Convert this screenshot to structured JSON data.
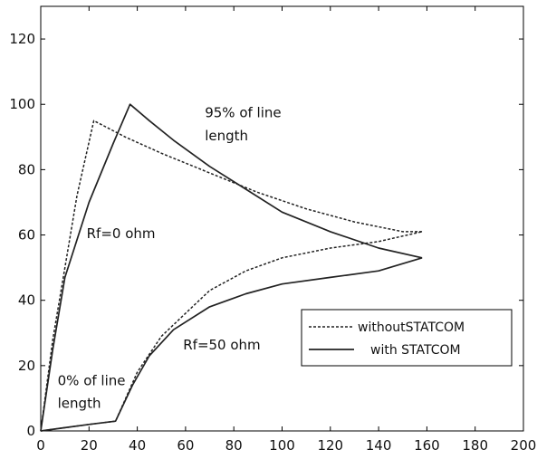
{
  "chart_data": {
    "type": "line",
    "title": "",
    "xlabel": "",
    "ylabel": "",
    "xlim": [
      0,
      200
    ],
    "ylim": [
      0,
      130
    ],
    "xticks": [
      "0",
      "20",
      "40",
      "60",
      "80",
      "100",
      "120",
      "140",
      "160",
      "180",
      "200"
    ],
    "yticks": [
      "0",
      "20",
      "40",
      "60",
      "80",
      "100",
      "120"
    ],
    "grid": false,
    "legend_position": "lower-right",
    "series": [
      {
        "name": "withoutSTATCOM",
        "style": "dashed",
        "color": "#222222",
        "segments": [
          {
            "x": [
              0,
              5,
              10,
              15,
              22,
              35,
              50,
              70,
              90,
              110,
              130,
              150,
              158
            ],
            "y": [
              0,
              28,
              50,
              72,
              95,
              90,
              85,
              79,
              73,
              68,
              64,
              61,
              61
            ]
          },
          {
            "x": [
              0,
              10,
              20,
              31,
              40,
              50,
              60,
              70,
              85,
              100,
              120,
              140,
              158
            ],
            "y": [
              0,
              1,
              2,
              3,
              18,
              29,
              36,
              43,
              49,
              53,
              56,
              58,
              61
            ]
          }
        ]
      },
      {
        "name": "with STATCOM",
        "style": "solid",
        "color": "#222222",
        "segments": [
          {
            "x": [
              0,
              5,
              10,
              20,
              30,
              37,
              45,
              55,
              70,
              85,
              100,
              120,
              140,
              158
            ],
            "y": [
              0,
              25,
              47,
              70,
              88,
              100,
              95,
              89,
              81,
              74,
              67,
              61,
              56,
              53
            ]
          },
          {
            "x": [
              0,
              10,
              20,
              31,
              38,
              45,
              55,
              70,
              85,
              100,
              120,
              140,
              158
            ],
            "y": [
              0,
              1,
              2,
              3,
              14,
              23,
              31,
              38,
              42,
              45,
              47,
              49,
              53
            ]
          }
        ]
      }
    ],
    "annotations": [
      {
        "text": "95% of line",
        "x": 68,
        "y": 96
      },
      {
        "text": "length",
        "x": 68,
        "y": 89
      },
      {
        "text": "Rf=0 ohm",
        "x": 19,
        "y": 59
      },
      {
        "text": "Rf=50 ohm",
        "x": 59,
        "y": 25
      },
      {
        "text": "0% of line",
        "x": 7,
        "y": 14
      },
      {
        "text": "length",
        "x": 7,
        "y": 7
      }
    ],
    "legend": {
      "items": [
        "withoutSTATCOM",
        "with STATCOM"
      ]
    }
  }
}
